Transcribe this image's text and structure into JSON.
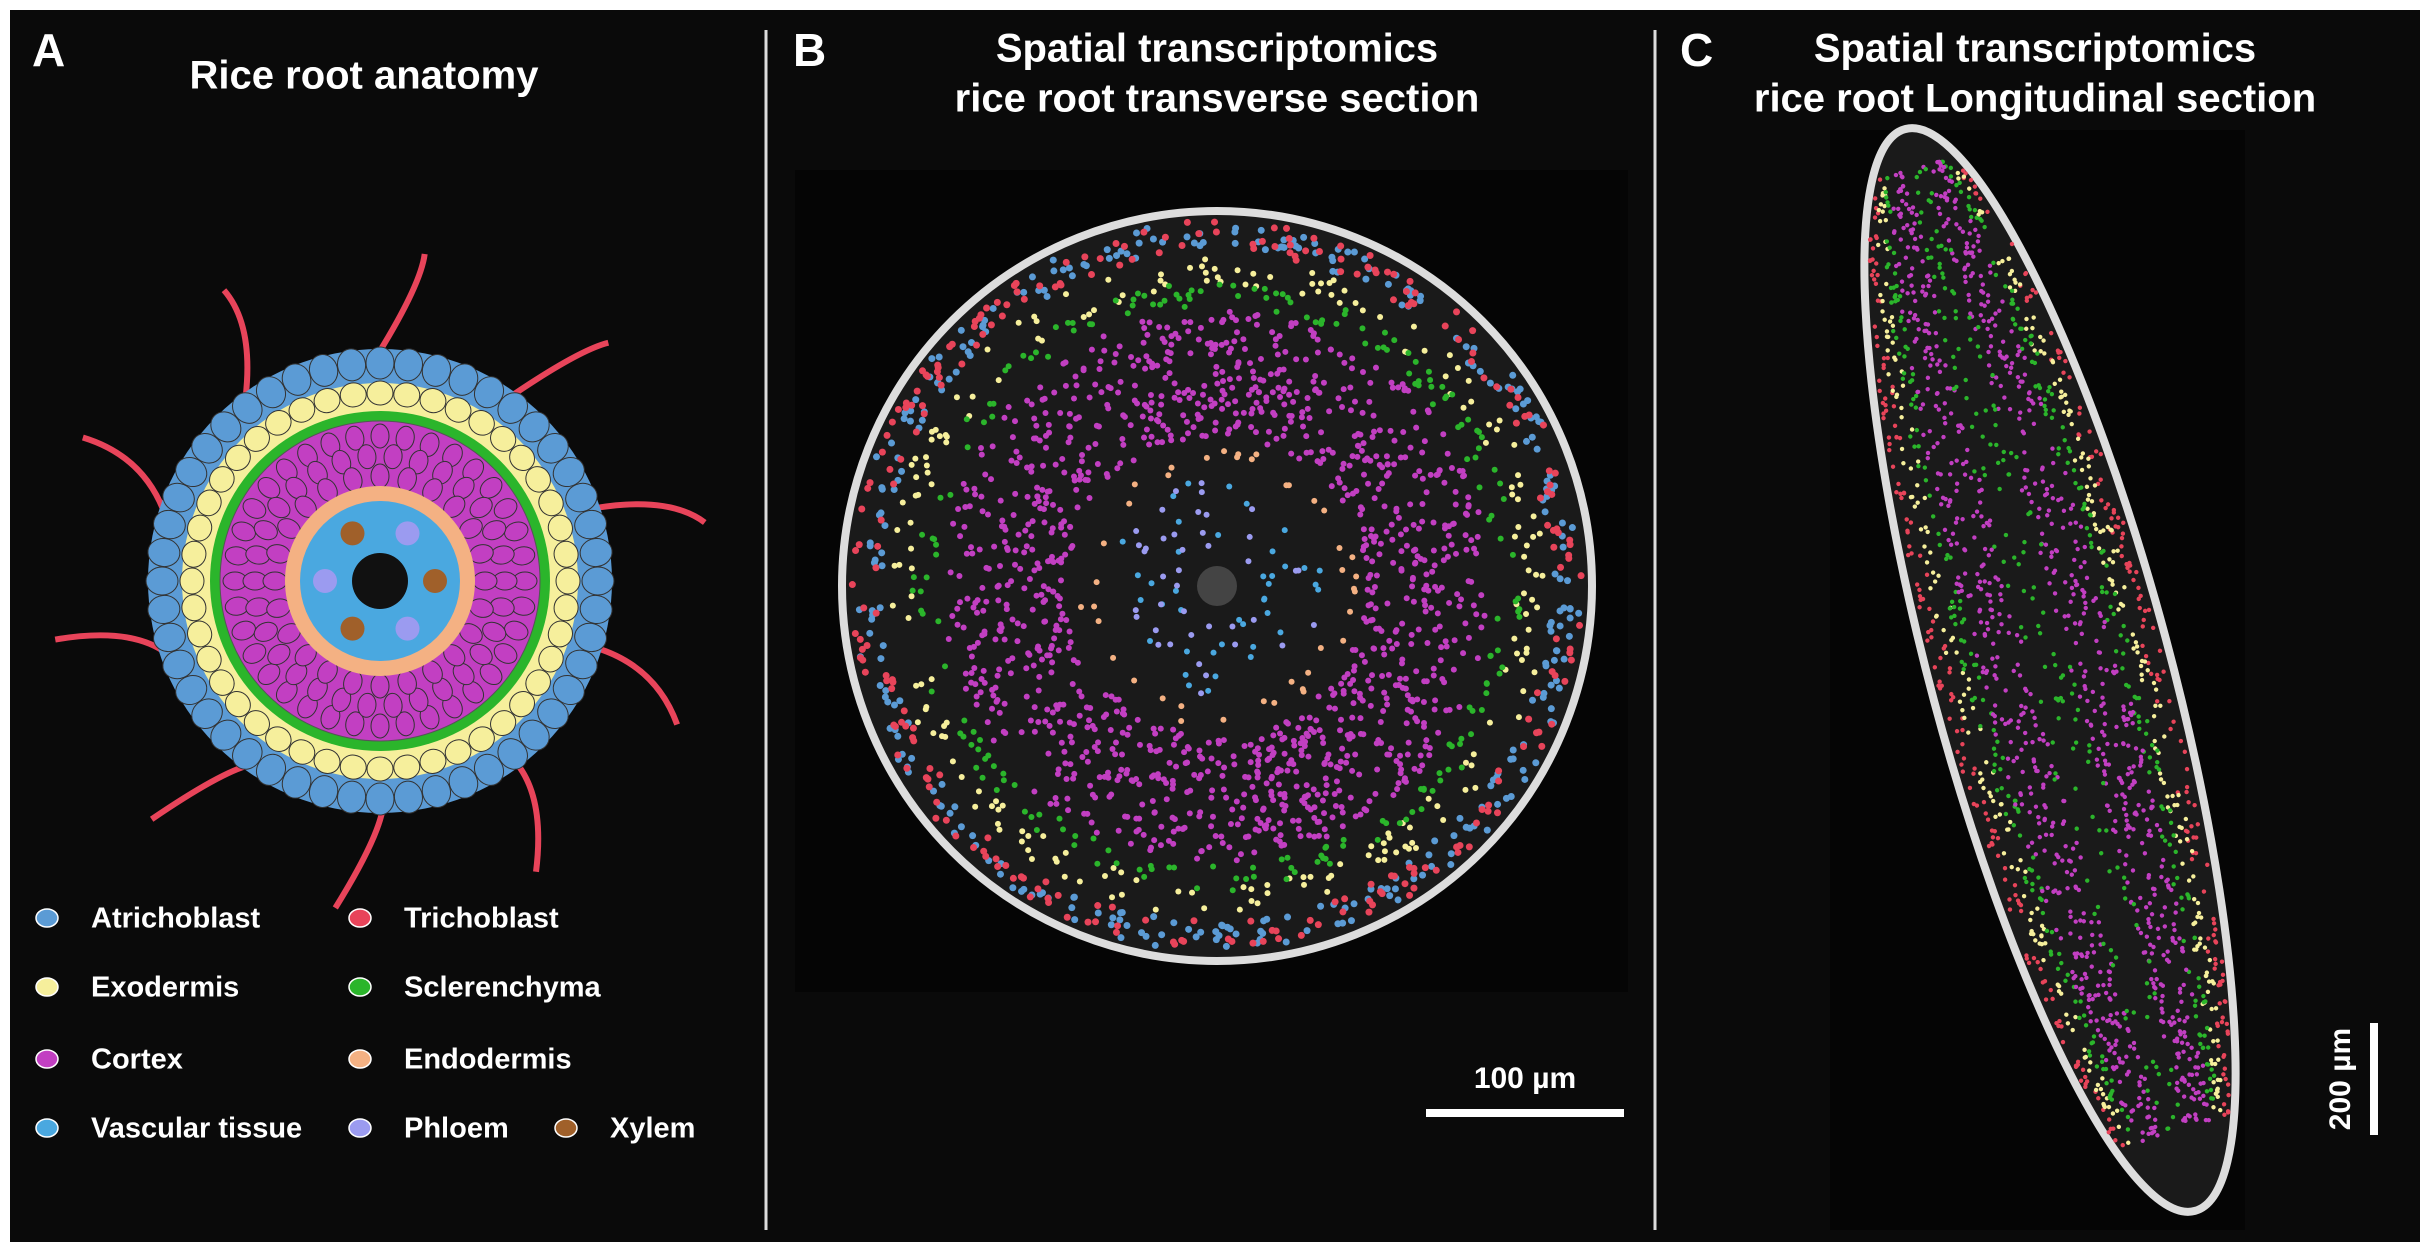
{
  "panels": [
    {
      "letter": "A",
      "title": "Rice root anatomy",
      "legend": [
        {
          "label": "Atrichoblast",
          "color": "#5b9bd5"
        },
        {
          "label": "Trichoblast",
          "color": "#e8445a"
        },
        {
          "label": "Exodermis",
          "color": "#f6ef9c"
        },
        {
          "label": "Sclerenchyma",
          "color": "#2bb52b"
        },
        {
          "label": "Cortex",
          "color": "#c23fc2"
        },
        {
          "label": "Endodermis",
          "color": "#f4b183"
        },
        {
          "label": "Vascular tissue",
          "color": "#4aa8e0"
        },
        {
          "label": "Phloem",
          "color": "#9b9bf0"
        },
        {
          "label": "Xylem",
          "color": "#a0602a"
        }
      ]
    },
    {
      "letter": "B",
      "title": [
        "Spatial transcriptomics",
        "rice root transverse section"
      ],
      "scale_bar": "100 µm"
    },
    {
      "letter": "C",
      "title": [
        "Spatial transcriptomics",
        "rice root Longitudinal section"
      ],
      "scale_bar": "200 µm"
    }
  ]
}
